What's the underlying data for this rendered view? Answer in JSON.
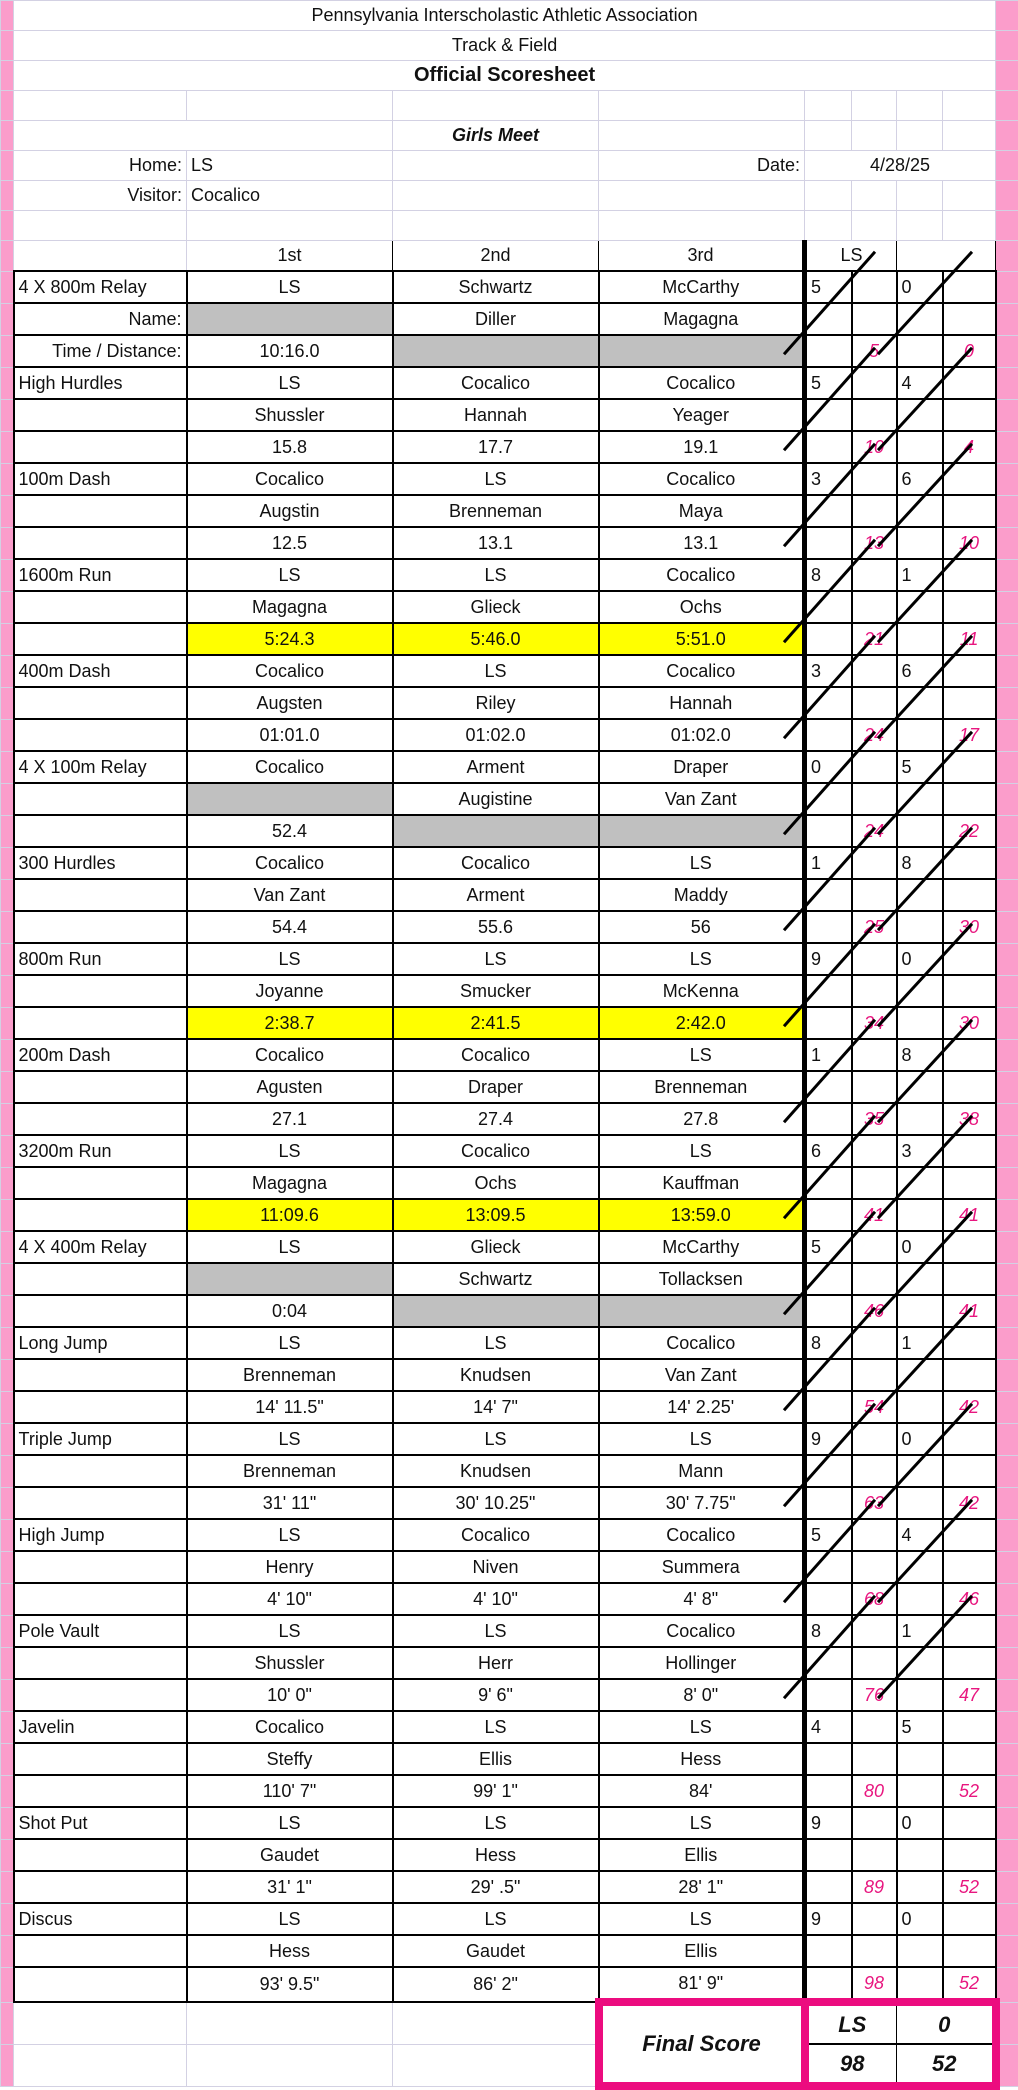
{
  "header": {
    "org": "Pennsylvania Interscholastic Athletic Association",
    "sport": "Track & Field",
    "title": "Official Scoresheet",
    "meet": "Girls Meet",
    "home_label": "Home:",
    "home": "LS",
    "visitor_label": "Visitor:",
    "visitor": "Cocalico",
    "date_label": "Date:",
    "date": "4/28/25"
  },
  "columns": {
    "first": "1st",
    "second": "2nd",
    "third": "3rd",
    "score_team": "LS"
  },
  "colors": {
    "accent_pink": "#ec0c7f",
    "strip_pink": "#fb9dcb",
    "highlight": "#ffff00",
    "relay_gray": "#c0c0c0"
  },
  "events": [
    {
      "name": "4 X 800m Relay",
      "row2_label": "Name:",
      "row3_label": "Time / Distance:",
      "relay": true,
      "highlight": false,
      "places": [
        [
          "LS",
          "Schwartz",
          "McCarthy"
        ],
        [
          "",
          "Diller",
          "Magagna"
        ],
        [
          "10:16.0",
          "",
          ""
        ]
      ],
      "ls_points": "5",
      "vis_points": "0",
      "ls_total": "5",
      "vis_total": "0"
    },
    {
      "name": "High Hurdles",
      "relay": false,
      "highlight": false,
      "places": [
        [
          "LS",
          "Cocalico",
          "Cocalico"
        ],
        [
          "Shussler",
          "Hannah",
          "Yeager"
        ],
        [
          "15.8",
          "17.7",
          "19.1"
        ]
      ],
      "ls_points": "5",
      "vis_points": "4",
      "ls_total": "10",
      "vis_total": "4"
    },
    {
      "name": "100m Dash",
      "relay": false,
      "highlight": false,
      "places": [
        [
          "Cocalico",
          "LS",
          "Cocalico"
        ],
        [
          "Augstin",
          "Brenneman",
          "Maya"
        ],
        [
          "12.5",
          "13.1",
          "13.1"
        ]
      ],
      "ls_points": "3",
      "vis_points": "6",
      "ls_total": "13",
      "vis_total": "10"
    },
    {
      "name": "1600m Run",
      "relay": false,
      "highlight": true,
      "places": [
        [
          "LS",
          "LS",
          "Cocalico"
        ],
        [
          "Magagna",
          "Glieck",
          "Ochs"
        ],
        [
          "5:24.3",
          "5:46.0",
          "5:51.0"
        ]
      ],
      "ls_points": "8",
      "vis_points": "1",
      "ls_total": "21",
      "vis_total": "11"
    },
    {
      "name": "400m Dash",
      "relay": false,
      "highlight": false,
      "places": [
        [
          "Cocalico",
          "LS",
          "Cocalico"
        ],
        [
          "Augsten",
          "Riley",
          "Hannah"
        ],
        [
          "01:01.0",
          "01:02.0",
          "01:02.0"
        ]
      ],
      "ls_points": "3",
      "vis_points": "6",
      "ls_total": "24",
      "vis_total": "17"
    },
    {
      "name": "4 X 100m Relay",
      "relay": true,
      "highlight": false,
      "places": [
        [
          "Cocalico",
          "Arment",
          "Draper"
        ],
        [
          "",
          "Augistine",
          "Van Zant"
        ],
        [
          "52.4",
          "",
          ""
        ]
      ],
      "ls_points": "0",
      "vis_points": "5",
      "ls_total": "24",
      "vis_total": "22"
    },
    {
      "name": "300 Hurdles",
      "relay": false,
      "highlight": false,
      "places": [
        [
          "Cocalico",
          "Cocalico",
          "LS"
        ],
        [
          "Van Zant",
          "Arment",
          "Maddy"
        ],
        [
          "54.4",
          "55.6",
          "56"
        ]
      ],
      "ls_points": "1",
      "vis_points": "8",
      "ls_total": "25",
      "vis_total": "30"
    },
    {
      "name": "800m Run",
      "relay": false,
      "highlight": true,
      "places": [
        [
          "LS",
          "LS",
          "LS"
        ],
        [
          "Joyanne",
          "Smucker",
          "McKenna"
        ],
        [
          "2:38.7",
          "2:41.5",
          "2:42.0"
        ]
      ],
      "ls_points": "9",
      "vis_points": "0",
      "ls_total": "34",
      "vis_total": "30"
    },
    {
      "name": "200m Dash",
      "relay": false,
      "highlight": false,
      "places": [
        [
          "Cocalico",
          "Cocalico",
          "LS"
        ],
        [
          "Agusten",
          "Draper",
          "Brenneman"
        ],
        [
          "27.1",
          "27.4",
          "27.8"
        ]
      ],
      "ls_points": "1",
      "vis_points": "8",
      "ls_total": "35",
      "vis_total": "38"
    },
    {
      "name": "3200m Run",
      "relay": false,
      "highlight": true,
      "places": [
        [
          "LS",
          "Cocalico",
          "LS"
        ],
        [
          "Magagna",
          "Ochs",
          "Kauffman"
        ],
        [
          "11:09.6",
          "13:09.5",
          "13:59.0"
        ]
      ],
      "ls_points": "6",
      "vis_points": "3",
      "ls_total": "41",
      "vis_total": "41"
    },
    {
      "name": "4 X 400m Relay",
      "relay": true,
      "highlight": false,
      "places": [
        [
          "LS",
          "Glieck",
          "McCarthy"
        ],
        [
          "",
          "Schwartz",
          "Tollacksen"
        ],
        [
          "0:04",
          "",
          ""
        ]
      ],
      "ls_points": "5",
      "vis_points": "0",
      "ls_total": "46",
      "vis_total": "41"
    },
    {
      "name": "Long Jump",
      "relay": false,
      "highlight": false,
      "places": [
        [
          "LS",
          "LS",
          "Cocalico"
        ],
        [
          "Brenneman",
          "Knudsen",
          "Van Zant"
        ],
        [
          "14' 11.5\"",
          "14' 7\"",
          "14' 2.25'"
        ]
      ],
      "ls_points": "8",
      "vis_points": "1",
      "ls_total": "54",
      "vis_total": "42"
    },
    {
      "name": "Triple Jump",
      "relay": false,
      "highlight": false,
      "places": [
        [
          "LS",
          "LS",
          "LS"
        ],
        [
          "Brenneman",
          "Knudsen",
          "Mann"
        ],
        [
          "31' 11\"",
          "30' 10.25\"",
          "30' 7.75\""
        ]
      ],
      "ls_points": "9",
      "vis_points": "0",
      "ls_total": "63",
      "vis_total": "42"
    },
    {
      "name": "High Jump",
      "relay": false,
      "highlight": false,
      "places": [
        [
          "LS",
          "Cocalico",
          "Cocalico"
        ],
        [
          "Henry",
          "Niven",
          "Summera"
        ],
        [
          "4' 10\"",
          "4' 10\"",
          "4' 8\""
        ]
      ],
      "ls_points": "5",
      "vis_points": "4",
      "ls_total": "68",
      "vis_total": "46"
    },
    {
      "name": "Pole Vault",
      "relay": false,
      "highlight": false,
      "places": [
        [
          "LS",
          "LS",
          "Cocalico"
        ],
        [
          "Shussler",
          "Herr",
          "Hollinger"
        ],
        [
          "10' 0\"",
          "9' 6\"",
          "8' 0\""
        ]
      ],
      "ls_points": "8",
      "vis_points": "1",
      "ls_total": "76",
      "vis_total": "47"
    },
    {
      "name": "Javelin",
      "relay": false,
      "highlight": false,
      "places": [
        [
          "Cocalico",
          "LS",
          "LS"
        ],
        [
          "Steffy",
          "Ellis",
          "Hess"
        ],
        [
          "110' 7\"",
          "99' 1\"",
          "84'"
        ]
      ],
      "ls_points": "4",
      "vis_points": "5",
      "ls_total": "80",
      "vis_total": "52"
    },
    {
      "name": "Shot Put",
      "relay": false,
      "highlight": false,
      "places": [
        [
          "LS",
          "LS",
          "LS"
        ],
        [
          "Gaudet",
          "Hess",
          "Ellis"
        ],
        [
          "31' 1\"",
          "29' .5\"",
          "28' 1\""
        ]
      ],
      "ls_points": "9",
      "vis_points": "0",
      "ls_total": "89",
      "vis_total": "52"
    },
    {
      "name": "Discus",
      "relay": false,
      "highlight": false,
      "places": [
        [
          "LS",
          "LS",
          "LS"
        ],
        [
          "Hess",
          "Gaudet",
          "Ellis"
        ],
        [
          "93' 9.5\"",
          "86' 2\"",
          "81' 9\""
        ]
      ],
      "ls_points": "9",
      "vis_points": "0",
      "ls_total": "98",
      "vis_total": "52"
    }
  ],
  "final": {
    "label": "Final Score",
    "team_left": "LS",
    "team_right": "0",
    "score_left": "98",
    "score_right": "52"
  }
}
